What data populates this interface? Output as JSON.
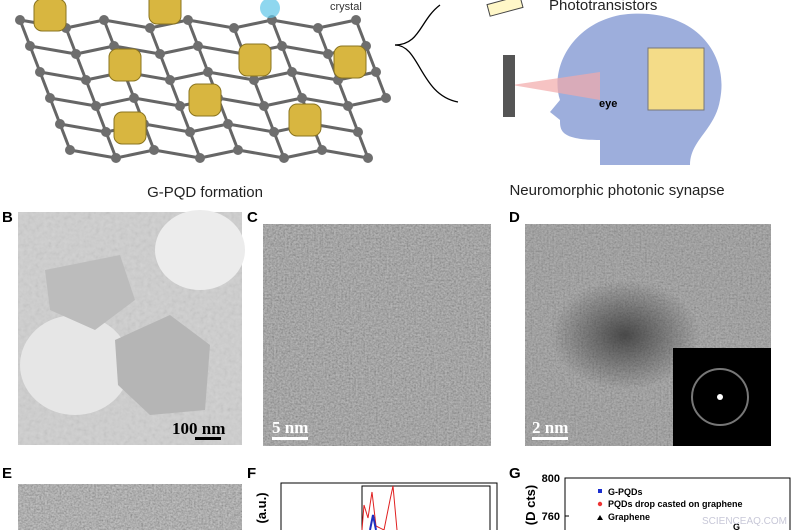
{
  "panel_a": {
    "crystal_label": "crystal",
    "phototransistors_label": "Phototransistors",
    "eye_label": "eye",
    "left_caption": "G-PQD formation",
    "right_caption": "Neuromorphic photonic synapse"
  },
  "panels": {
    "b": {
      "label": "B",
      "scale_bar": "100 nm"
    },
    "c": {
      "label": "C",
      "scale_bar": "5 nm"
    },
    "d": {
      "label": "D",
      "scale_bar": "2 nm"
    },
    "e": {
      "label": "E"
    },
    "f": {
      "label": "F",
      "y_axis_label": "(a.u.)"
    },
    "g": {
      "label": "G",
      "y_axis_label": "(D cts)",
      "y_ticks": [
        "800",
        "760"
      ],
      "legend": [
        "G-PQDs",
        "PQDs drop casted on graphene",
        "Graphene"
      ],
      "inset_label": "G"
    }
  },
  "watermark": "SCIENCEAQ.COM"
}
